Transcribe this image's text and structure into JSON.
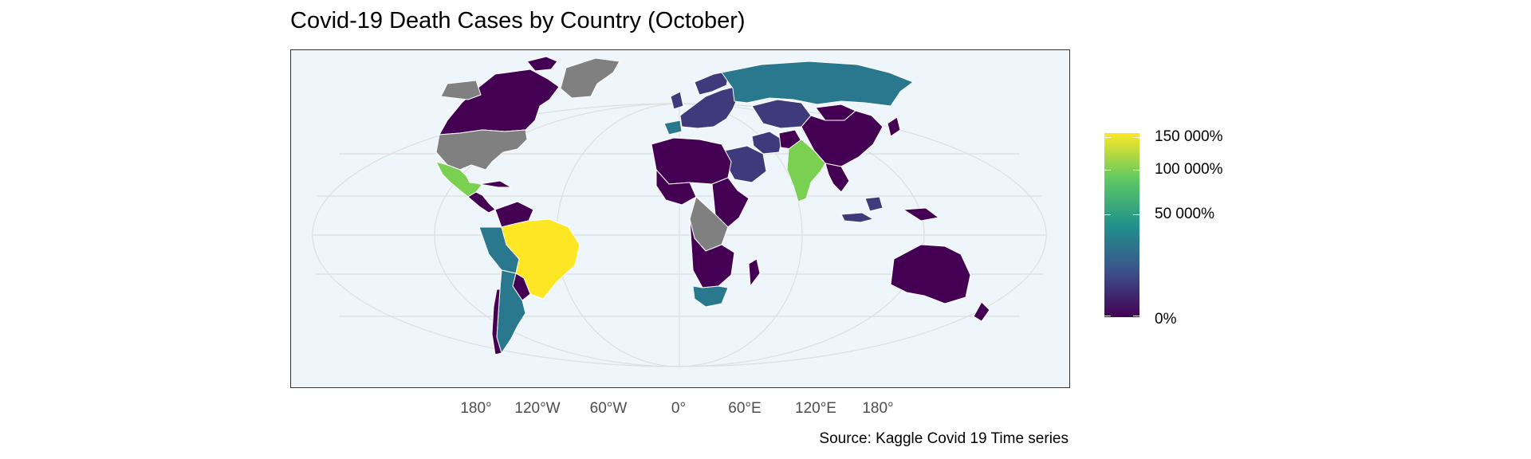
{
  "title": "Covid-19 Death Cases by Country (October)",
  "caption": "Source: Kaggle Covid 19 Time series",
  "x_ticks": [
    "180°",
    "120°W",
    "60°W",
    "0°",
    "60°E",
    "120°E",
    "180°"
  ],
  "legend": {
    "labels": [
      "150 000%",
      "100 000%",
      "50 000%",
      "0%"
    ],
    "levels": [
      150000,
      100000,
      50000,
      0
    ],
    "colors": [
      "#440154",
      "#3b528b",
      "#21918c",
      "#5ec962",
      "#fde725"
    ]
  },
  "colors": {
    "ocean": "#eef6fc",
    "no_data": "#808080",
    "level_0": "#440154",
    "level_low": "#3e3a7c",
    "level_mid": "#2a788e",
    "level_high": "#7ad151",
    "level_max": "#fde725"
  },
  "countries": [
    {
      "name": "Canada",
      "level": "level_0"
    },
    {
      "name": "United States",
      "level": "no_data"
    },
    {
      "name": "Greenland",
      "level": "no_data"
    },
    {
      "name": "Mexico",
      "level": "level_high"
    },
    {
      "name": "Brazil",
      "level": "level_max"
    },
    {
      "name": "Peru",
      "level": "level_mid"
    },
    {
      "name": "Argentina",
      "level": "level_mid"
    },
    {
      "name": "Russia",
      "level": "level_mid"
    },
    {
      "name": "China",
      "level": "level_0"
    },
    {
      "name": "India",
      "level": "level_high"
    },
    {
      "name": "Australia",
      "level": "level_0"
    },
    {
      "name": "South Africa",
      "level": "level_mid"
    },
    {
      "name": "Iran",
      "level": "level_low"
    },
    {
      "name": "Saudi Arabia",
      "level": "level_low"
    },
    {
      "name": "Kazakhstan",
      "level": "level_low"
    },
    {
      "name": "Mongolia",
      "level": "level_0"
    },
    {
      "name": "DR Congo",
      "level": "no_data"
    },
    {
      "name": "Indonesia",
      "level": "level_low"
    },
    {
      "name": "Spain",
      "level": "level_mid"
    },
    {
      "name": "Europe (other)",
      "level": "level_low"
    },
    {
      "name": "Africa (other)",
      "level": "level_0"
    }
  ]
}
